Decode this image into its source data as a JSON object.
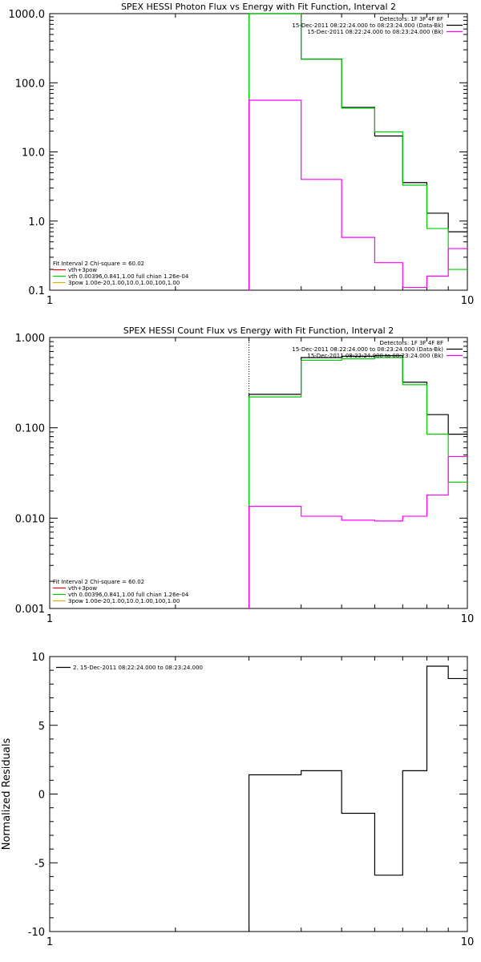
{
  "chart_data": [
    {
      "type": "line",
      "title": "SPEX HESSI Photon Flux vs Energy with Fit Function, Interval 2",
      "xlabel": "",
      "ylabel": "",
      "xscale": "log",
      "yscale": "log",
      "xlim": [
        1,
        10
      ],
      "ylim": [
        0.1,
        1000
      ],
      "x_tick_labels": [
        {
          "value": 1,
          "label": "1"
        },
        {
          "value": 10,
          "label": "10"
        }
      ],
      "y_tick_labels": [
        {
          "value": 1000,
          "label": "1000.0"
        },
        {
          "value": 100,
          "label": "100.0"
        },
        {
          "value": 10,
          "label": "10.0"
        },
        {
          "value": 1,
          "label": "1.0"
        },
        {
          "value": 0.1,
          "label": "0.1"
        }
      ],
      "bin_edges": [
        3,
        4,
        5,
        6,
        7,
        8,
        9,
        10
      ],
      "vline_x": 3,
      "vline_style": "dashed",
      "series": [
        {
          "name": "",
          "color": "#000000",
          "values": [
            1000,
            220,
            44,
            17,
            3.6,
            1.3,
            0.7
          ]
        },
        {
          "name": "",
          "color": "#00cc00",
          "values": [
            1000,
            220,
            43,
            19.5,
            3.3,
            0.78,
            0.2
          ]
        },
        {
          "name": "",
          "color": "#ff00ff",
          "values": [
            56,
            4,
            0.58,
            0.25,
            0.11,
            0.16,
            0.4
          ]
        }
      ],
      "legend_top_right": [
        {
          "text": "Detectors: 1F 3F 4F 8F",
          "color": "#000000"
        },
        {
          "text": "15-Dec-2011 08:22:24.000 to 08:23:24.000 (Data-Bk)",
          "color": "#000000"
        },
        {
          "text": "15-Dec-2011 08:22:24.000 to 08:23:24.000 (Bk)",
          "color": "#ff00ff"
        }
      ],
      "legend_bottom_left": [
        {
          "text": "Fit Interval  2   Chi-square = 60.02",
          "color": "#000000"
        },
        {
          "text": "vth+3pow",
          "color": "#ff0000"
        },
        {
          "text": "vth 0.00396,0.841,1.00  full chian 1.26e-04",
          "color": "#00cc00"
        },
        {
          "text": "3pow 1.00e-20,1.00,10.0,1.00,100,1.00",
          "color": "#e0b000"
        }
      ]
    },
    {
      "type": "line",
      "title": "SPEX HESSI Count Flux vs Energy with Fit Function, Interval 2",
      "xlabel": "",
      "ylabel": "",
      "xscale": "log",
      "yscale": "log",
      "xlim": [
        1,
        10
      ],
      "ylim": [
        0.001,
        1
      ],
      "x_tick_labels": [
        {
          "value": 1,
          "label": "1"
        },
        {
          "value": 10,
          "label": "10"
        }
      ],
      "y_tick_labels": [
        {
          "value": 1,
          "label": "1.000"
        },
        {
          "value": 0.1,
          "label": "0.100"
        },
        {
          "value": 0.01,
          "label": "0.010"
        },
        {
          "value": 0.001,
          "label": "0.001"
        }
      ],
      "bin_edges": [
        3,
        4,
        5,
        6,
        7,
        8,
        9,
        10
      ],
      "vline_x": 3,
      "vline_style": "dotted",
      "series": [
        {
          "name": "",
          "color": "#000000",
          "values": [
            0.235,
            0.6,
            0.62,
            0.63,
            0.32,
            0.14,
            0.085
          ]
        },
        {
          "name": "",
          "color": "#00cc00",
          "values": [
            0.22,
            0.56,
            0.58,
            0.6,
            0.3,
            0.085,
            0.025
          ]
        },
        {
          "name": "",
          "color": "#ff00ff",
          "values": [
            0.0135,
            0.0105,
            0.0095,
            0.0093,
            0.0105,
            0.018,
            0.048
          ]
        }
      ],
      "legend_top_right": [
        {
          "text": "Detectors: 1F 3F 4F 8F",
          "color": "#000000"
        },
        {
          "text": "15-Dec-2011 08:22:24.000 to 08:23:24.000 (Data-Bk)",
          "color": "#000000"
        },
        {
          "text": "15-Dec-2011 08:22:24.000 to 08:23:24.000 (Bk)",
          "color": "#ff00ff"
        }
      ],
      "legend_bottom_left": [
        {
          "text": "Fit Interval  2   Chi-square = 60.02",
          "color": "#000000"
        },
        {
          "text": "vth+3pow",
          "color": "#ff0000"
        },
        {
          "text": "vth 0.00396,0.841,1.00  full chian 1.26e-04",
          "color": "#00cc00"
        },
        {
          "text": "3pow 1.00e-20,1.00,10.0,1.00,100,1.00",
          "color": "#e0b000"
        }
      ]
    },
    {
      "type": "line",
      "title": "",
      "xlabel": "",
      "ylabel": "Normalized Residuals",
      "xscale": "log",
      "yscale": "linear",
      "xlim": [
        1,
        10
      ],
      "ylim": [
        -10,
        10
      ],
      "x_tick_labels": [
        {
          "value": 1,
          "label": "1"
        },
        {
          "value": 10,
          "label": "10"
        }
      ],
      "y_tick_labels": [
        {
          "value": 10,
          "label": "10"
        },
        {
          "value": 5,
          "label": "5"
        },
        {
          "value": 0,
          "label": "0"
        },
        {
          "value": -5,
          "label": "-5"
        },
        {
          "value": -10,
          "label": "-10"
        }
      ],
      "bin_edges": [
        3,
        4,
        5,
        6,
        7,
        8,
        9,
        10
      ],
      "series": [
        {
          "name": "2. 15-Dec-2011 08:22:24.000 to 08:23:24.000",
          "color": "#000000",
          "values": [
            1.4,
            1.7,
            -1.4,
            -5.9,
            1.7,
            9.3,
            8.4
          ]
        }
      ],
      "legend_top_left": [
        {
          "text": "2. 15-Dec-2011 08:22:24.000 to 08:23:24.000",
          "color": "#000000"
        }
      ]
    }
  ]
}
